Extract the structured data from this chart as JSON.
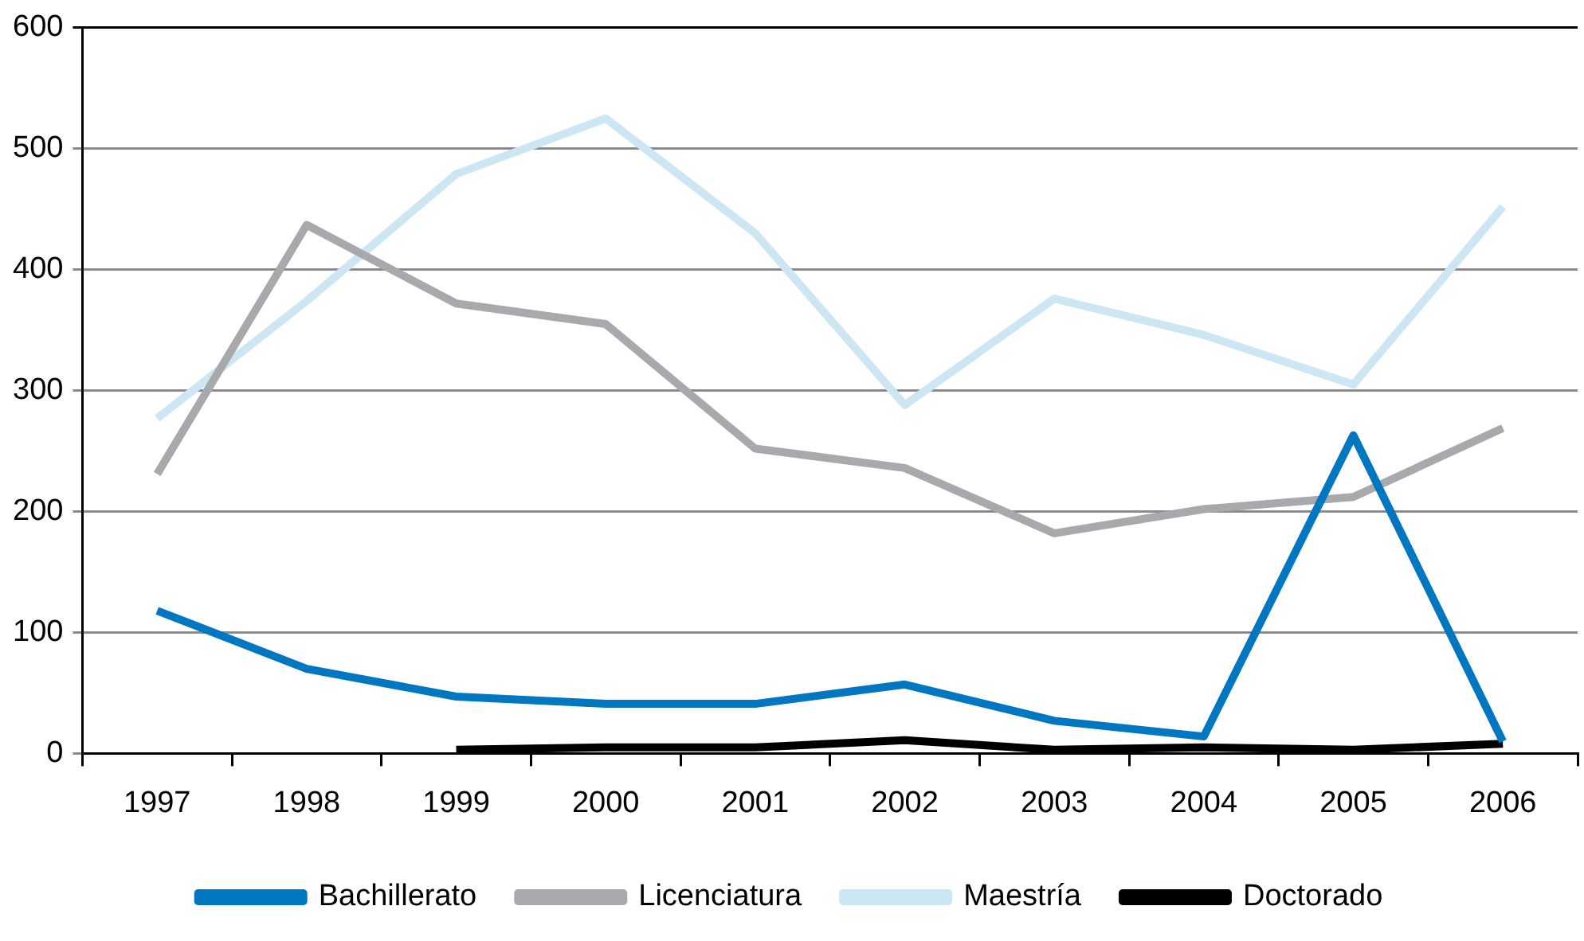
{
  "chart_data": {
    "type": "line",
    "categories": [
      "1997",
      "1998",
      "1999",
      "2000",
      "2001",
      "2002",
      "2003",
      "2004",
      "2005",
      "2006"
    ],
    "series": [
      {
        "name": "Bachillerato",
        "color": "#0077c0",
        "values": [
          118,
          70,
          47,
          41,
          41,
          57,
          27,
          14,
          263,
          10
        ]
      },
      {
        "name": "Licenciatura",
        "color": "#a7a9ac",
        "values": [
          231,
          437,
          372,
          355,
          252,
          236,
          182,
          202,
          212,
          269
        ]
      },
      {
        "name": "Maestría",
        "color": "#cce6f4",
        "values": [
          277,
          374,
          479,
          525,
          430,
          288,
          376,
          346,
          305,
          452
        ]
      },
      {
        "name": "Doctorado",
        "color": "#000000",
        "values": [
          null,
          null,
          3,
          5,
          5,
          11,
          3,
          5,
          3,
          8
        ]
      }
    ],
    "ylim": [
      0,
      600
    ],
    "yticks": [
      0,
      100,
      200,
      300,
      400,
      500,
      600
    ],
    "grid": "y",
    "legend": "bottom",
    "marker": "none",
    "line_style": "solid"
  }
}
